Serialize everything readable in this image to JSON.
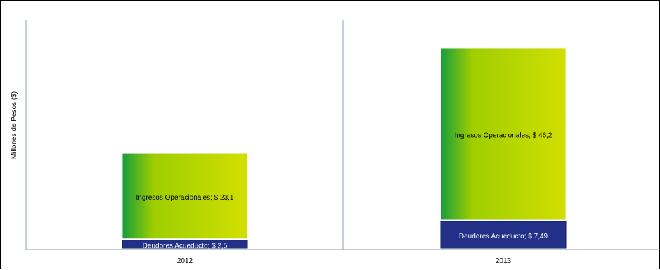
{
  "chart_data": {
    "type": "bar",
    "stacked": true,
    "categories": [
      "2012",
      "2013"
    ],
    "ylabel": "Millones de Pesos ($)",
    "series": [
      {
        "name": "Deudores Acueducto",
        "values": [
          2.5,
          7.49
        ],
        "labels": [
          "Deudores Acueducto;  $ 2,5",
          "Deudores Acueducto;  $ 7,49"
        ],
        "color": "#233087"
      },
      {
        "name": "Ingresos Operacionales",
        "values": [
          23.1,
          46.2
        ],
        "labels": [
          "Ingresos Operacionales;  $ 23,1",
          "Ingresos Operacionales;  $ 46,2"
        ],
        "gradient_from": "#169d3d",
        "gradient_to": "#d2df00"
      }
    ],
    "grid": false,
    "legend": "none"
  }
}
